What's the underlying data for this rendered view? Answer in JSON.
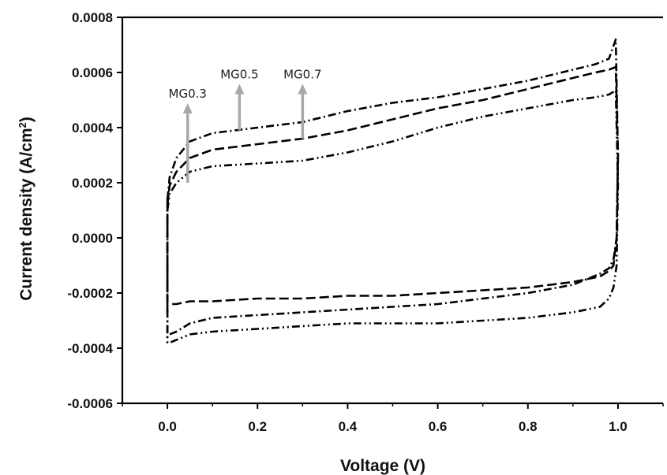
{
  "chart_data": {
    "type": "line",
    "title": "",
    "xlabel": "Voltage (V)",
    "ylabel_main": "Current density (A/cm",
    "ylabel_sup": "2",
    "ylabel_close": ")",
    "xlim": [
      -0.1,
      1.1
    ],
    "ylim": [
      -0.0006,
      0.0008
    ],
    "grid": false,
    "legend": "none",
    "x_ticks": [
      0.0,
      0.2,
      0.4,
      0.6,
      0.8,
      1.0
    ],
    "x_tick_labels": [
      "0.0",
      "0.2",
      "0.4",
      "0.6",
      "0.8",
      "1.0"
    ],
    "y_ticks": [
      -0.0006,
      -0.0004,
      -0.0002,
      0.0,
      0.0002,
      0.0004,
      0.0006,
      0.0008
    ],
    "y_tick_labels": [
      "-0.0006",
      "-0.0004",
      "-0.0002",
      "0.0000",
      "0.0002",
      "0.0004",
      "0.0006",
      "0.0008"
    ],
    "series": [
      {
        "label_text": "MG0.3",
        "dash": "10,4,2,4,2,4",
        "x": [
          0.0,
          0.005,
          0.02,
          0.05,
          0.1,
          0.2,
          0.3,
          0.4,
          0.5,
          0.6,
          0.7,
          0.8,
          0.9,
          0.95,
          0.98,
          0.995,
          1.0,
          0.997,
          0.99,
          0.98,
          0.96,
          0.93,
          0.9,
          0.8,
          0.7,
          0.6,
          0.5,
          0.4,
          0.3,
          0.2,
          0.1,
          0.05,
          0.02,
          0.005,
          0.0
        ],
        "y": [
          0.0001,
          0.00016,
          0.0002,
          0.00024,
          0.00026,
          0.00027,
          0.00028,
          0.00031,
          0.00035,
          0.0004,
          0.00044,
          0.00047,
          0.0005,
          0.00051,
          0.00052,
          0.000535,
          0.0002,
          -0.0001,
          -0.00018,
          -0.00022,
          -0.00025,
          -0.00026,
          -0.00027,
          -0.00029,
          -0.0003,
          -0.00031,
          -0.00031,
          -0.00031,
          -0.00032,
          -0.00033,
          -0.00034,
          -0.00035,
          -0.00037,
          -0.00038,
          -0.00038
        ]
      },
      {
        "label_text": "MG0.5",
        "dash": "12,5",
        "x": [
          0.0,
          0.005,
          0.02,
          0.05,
          0.1,
          0.2,
          0.3,
          0.4,
          0.5,
          0.6,
          0.7,
          0.8,
          0.9,
          0.95,
          0.98,
          0.995,
          1.0,
          0.997,
          0.99,
          0.98,
          0.96,
          0.93,
          0.9,
          0.8,
          0.7,
          0.6,
          0.5,
          0.4,
          0.3,
          0.2,
          0.1,
          0.05,
          0.02,
          0.005,
          0.0
        ],
        "y": [
          0.00012,
          0.00019,
          0.00024,
          0.00029,
          0.00032,
          0.00034,
          0.00036,
          0.00039,
          0.00043,
          0.00047,
          0.0005,
          0.00054,
          0.00058,
          0.0006,
          0.00061,
          0.00062,
          0.0003,
          0.0,
          -0.0001,
          -0.00012,
          -0.00014,
          -0.00015,
          -0.00016,
          -0.00018,
          -0.00019,
          -0.0002,
          -0.00021,
          -0.00021,
          -0.00022,
          -0.00022,
          -0.00023,
          -0.00023,
          -0.00024,
          -0.00024,
          -0.00024
        ]
      },
      {
        "label_text": "MG0.7",
        "dash": "10,4,2,4",
        "x": [
          0.0,
          0.005,
          0.02,
          0.05,
          0.1,
          0.2,
          0.3,
          0.4,
          0.5,
          0.6,
          0.7,
          0.8,
          0.9,
          0.95,
          0.98,
          0.995,
          1.0,
          0.997,
          0.99,
          0.98,
          0.96,
          0.93,
          0.9,
          0.8,
          0.7,
          0.6,
          0.5,
          0.4,
          0.3,
          0.2,
          0.1,
          0.05,
          0.02,
          0.005,
          0.0
        ],
        "y": [
          0.00014,
          0.00022,
          0.00029,
          0.00035,
          0.00038,
          0.0004,
          0.00042,
          0.00046,
          0.00049,
          0.00051,
          0.00054,
          0.00057,
          0.00061,
          0.00063,
          0.00065,
          0.00072,
          0.0003,
          0.0,
          -8e-05,
          -0.00011,
          -0.00013,
          -0.00015,
          -0.00017,
          -0.0002,
          -0.00022,
          -0.00024,
          -0.00025,
          -0.00026,
          -0.00027,
          -0.00028,
          -0.00029,
          -0.00031,
          -0.00034,
          -0.00035,
          -0.00036
        ]
      }
    ],
    "annotations": [
      {
        "text": "MG0.3",
        "arrow_x": 0.045,
        "arrow_y_from": 0.0002,
        "arrow_y_to": 0.00048
      },
      {
        "text": "MG0.5",
        "arrow_x": 0.16,
        "arrow_y_from": 0.00039,
        "arrow_y_to": 0.00055
      },
      {
        "text": "MG0.7",
        "arrow_x": 0.3,
        "arrow_y_from": 0.00036,
        "arrow_y_to": 0.00055
      }
    ],
    "colors": {
      "lines": "#000000",
      "arrows": "#a8a8a8",
      "axes": "#000000"
    }
  }
}
